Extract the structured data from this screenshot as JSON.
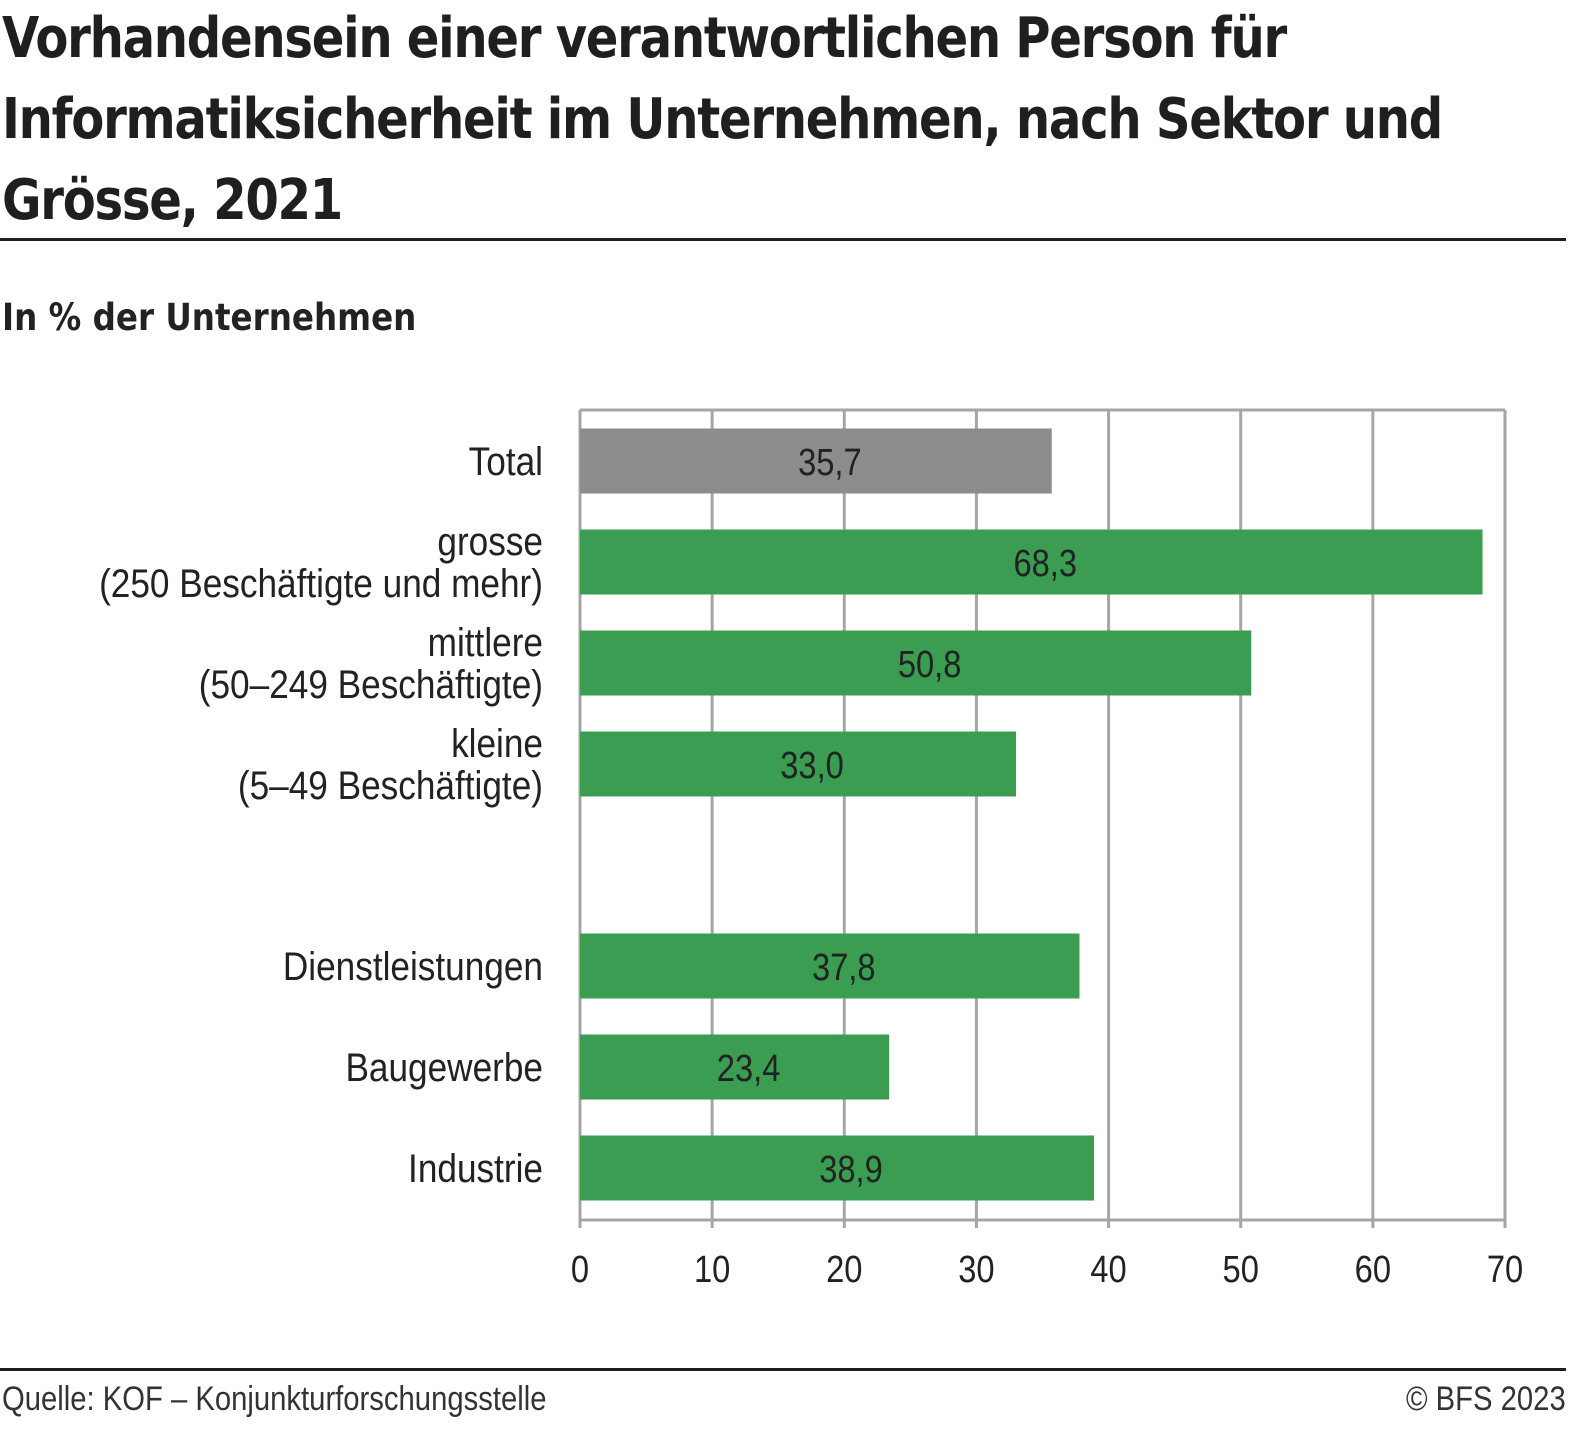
{
  "header": {
    "title_lines": [
      "Vorhandensein einer verantwortlichen Person für",
      "Informatiksicherheit im Unternehmen, nach Sektor und",
      "Grösse, 2021"
    ],
    "subtitle": "In % der Unternehmen"
  },
  "footer": {
    "source": "Quelle: KOF – Konjunkturforschungsstelle",
    "copyright": "© BFS 2023"
  },
  "colors": {
    "total_bar": "#8c8c8c",
    "category_bar": "#3a9d52",
    "grid": "#a6a6a6",
    "text": "#222222"
  },
  "chart_data": {
    "type": "bar",
    "orientation": "horizontal",
    "title": "Vorhandensein einer verantwortlichen Person für Informatiksicherheit im Unternehmen, nach Sektor und Grösse, 2021",
    "subtitle": "In % der Unternehmen",
    "xlabel": "",
    "ylabel": "",
    "xlim": [
      0,
      70
    ],
    "x_ticks": [
      "0",
      "10",
      "20",
      "30",
      "40",
      "50",
      "60",
      "70"
    ],
    "grid": true,
    "legend": "none",
    "categories": [
      {
        "label_lines": [
          "Total"
        ],
        "value": 35.7,
        "value_label": "35,7",
        "group": "total"
      },
      {
        "label_lines": [
          "grosse",
          "(250 Beschäftigte und mehr)"
        ],
        "value": 68.3,
        "value_label": "68,3",
        "group": "size"
      },
      {
        "label_lines": [
          "mittlere",
          "(50–249 Beschäftigte)"
        ],
        "value": 50.8,
        "value_label": "50,8",
        "group": "size"
      },
      {
        "label_lines": [
          "kleine",
          "(5–49 Beschäftigte)"
        ],
        "value": 33.0,
        "value_label": "33,0",
        "group": "size"
      },
      null,
      {
        "label_lines": [
          "Dienstleistungen"
        ],
        "value": 37.8,
        "value_label": "37,8",
        "group": "sector"
      },
      {
        "label_lines": [
          "Baugewerbe"
        ],
        "value": 23.4,
        "value_label": "23,4",
        "group": "sector"
      },
      {
        "label_lines": [
          "Industrie"
        ],
        "value": 38.9,
        "value_label": "38,9",
        "group": "sector"
      }
    ],
    "source": "Quelle: KOF – Konjunkturforschungsstelle"
  }
}
